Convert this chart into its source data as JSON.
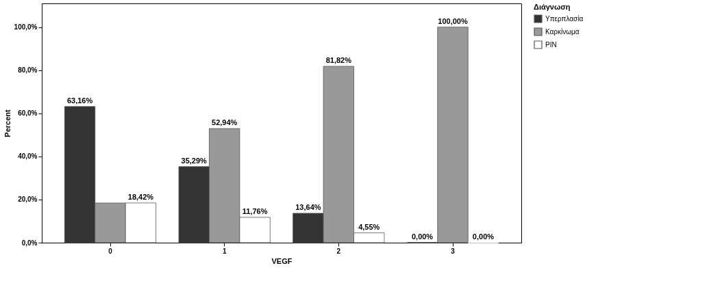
{
  "chart_data": {
    "type": "bar",
    "xlabel": "VEGF",
    "ylabel": "Percent",
    "legend_title": "Διάγνωση",
    "legend": "top right",
    "grid": false,
    "categories": [
      "0",
      "1",
      "2",
      "3"
    ],
    "ylim": [
      0,
      111
    ],
    "yticks": [
      {
        "value": 0,
        "label": "0,0%"
      },
      {
        "value": 20,
        "label": "20,0%"
      },
      {
        "value": 40,
        "label": "40,0%"
      },
      {
        "value": 60,
        "label": "60,0%"
      },
      {
        "value": 80,
        "label": "80,0%"
      },
      {
        "value": 100,
        "label": "100,0%"
      }
    ],
    "series": [
      {
        "name": "Υπερπλασία",
        "color": "#333333",
        "values": [
          63.16,
          35.29,
          13.64,
          0
        ],
        "value_labels": [
          "63,16%",
          "35,29%",
          "13,64%",
          "0,00%"
        ]
      },
      {
        "name": "Καρκίνωμα",
        "color": "#999999",
        "values": [
          18.4,
          52.94,
          81.82,
          100
        ],
        "value_labels": [
          null,
          "52,94%",
          "81,82%",
          "100,00%"
        ]
      },
      {
        "name": "PIN",
        "color": "#ffffff",
        "values": [
          18.42,
          11.76,
          4.55,
          0
        ],
        "value_labels": [
          "18,42%",
          "11,76%",
          "4,55%",
          "0,00%"
        ]
      }
    ]
  }
}
